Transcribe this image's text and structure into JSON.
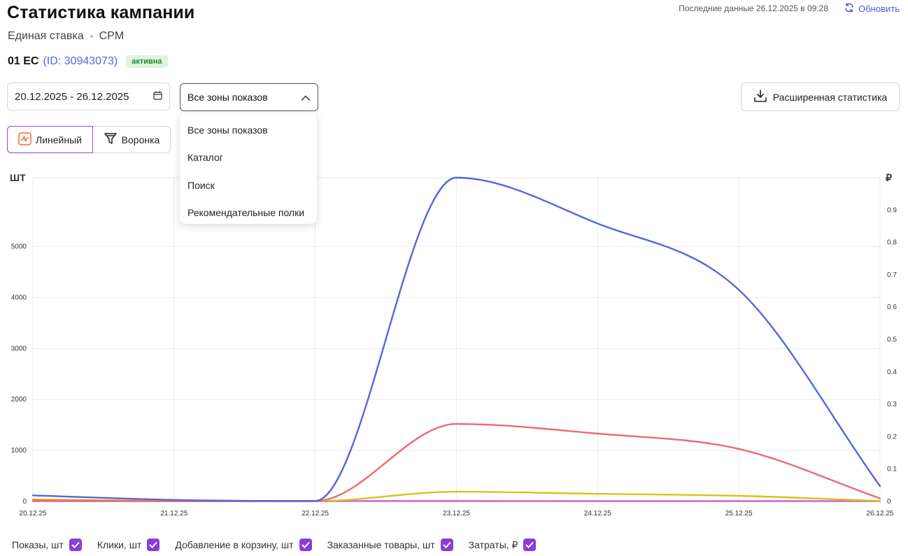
{
  "header": {
    "title": "Статистика кампании",
    "bid_type": "Единая ставка",
    "payment_model": "CPM",
    "last_data": "Последние данные 26.12.2025 в 09:28",
    "refresh_label": "Обновить"
  },
  "campaign": {
    "name": "01 ЕС",
    "id_label": "(ID: 30943073)",
    "status": "активна"
  },
  "filters": {
    "date_range": "20.12.2025 - 26.12.2025",
    "zone_selected": "Все зоны показов",
    "zone_options": [
      "Все зоны показов",
      "Каталог",
      "Поиск",
      "Рекомендательные полки"
    ],
    "extended_stats_label": "Расширенная статистика"
  },
  "view_toggle": {
    "linear_label": "Линейный",
    "funnel_label": "Воронка"
  },
  "colors": {
    "accent": "#8a3ddd",
    "impressions": "#5567d8",
    "clicks": "#ee6b6b",
    "add_to_cart": "#d9c21a",
    "orders": "#4a8fc9",
    "spend": "#e06bd0"
  },
  "chart_data": {
    "type": "line",
    "x": [
      "20.12.25",
      "21.12.25",
      "22.12.25",
      "23.12.25",
      "24.12.25",
      "25.12.25",
      "26.12.25"
    ],
    "left_axis_unit": "ШТ",
    "right_axis_unit": "₽",
    "left_ticks": [
      "0",
      "1000",
      "2000",
      "3000",
      "4000",
      "5000"
    ],
    "right_ticks": [
      "0",
      "0.1",
      "0.2",
      "0.3",
      "0.4",
      "0.5",
      "0.6",
      "0.7",
      "0.8",
      "0.9"
    ],
    "ylim_left": [
      0,
      6350
    ],
    "ylim_right": [
      0,
      1
    ],
    "grid": true,
    "series": [
      {
        "name": "Показы, шт",
        "axis": "left",
        "color": "#5567d8",
        "values": [
          120,
          30,
          10,
          6350,
          5450,
          4150,
          300
        ]
      },
      {
        "name": "Клики, шт",
        "axis": "left",
        "color": "#ee6b6b",
        "values": [
          20,
          5,
          0,
          1520,
          1330,
          1030,
          60
        ]
      },
      {
        "name": "Добавление в корзину, шт",
        "axis": "left",
        "color": "#d9c21a",
        "values": [
          40,
          10,
          5,
          190,
          150,
          110,
          10
        ]
      },
      {
        "name": "Заказанные товары, шт",
        "axis": "left",
        "color": "#4a8fc9",
        "values": [
          0,
          0,
          0,
          0,
          0,
          0,
          0
        ]
      },
      {
        "name": "Затраты, ₽",
        "axis": "right",
        "color": "#e06bd0",
        "values": [
          0,
          0,
          0,
          0.002,
          0.001,
          0.0,
          0.0
        ]
      }
    ],
    "legend_position": "bottom"
  }
}
